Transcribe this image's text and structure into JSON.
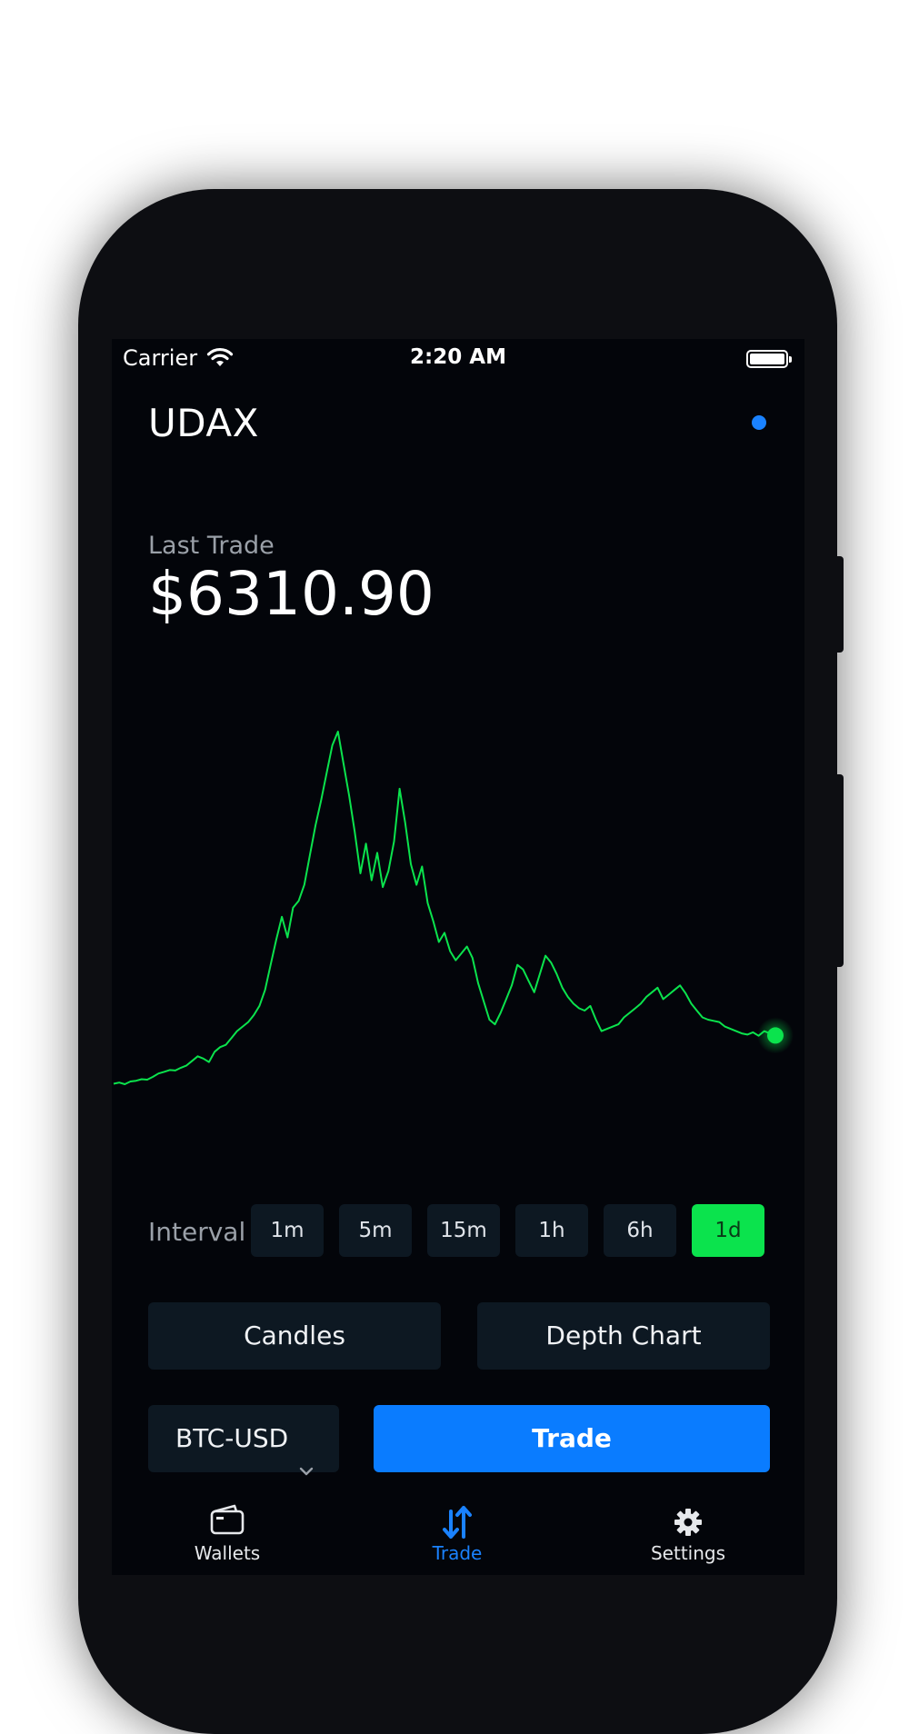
{
  "status_bar": {
    "carrier": "Carrier",
    "time": "2:20 AM"
  },
  "app": {
    "title": "UDAX",
    "accent": "#1a82ff",
    "positive": "#0be34d"
  },
  "last_trade": {
    "label": "Last Trade",
    "price": "$6310.90"
  },
  "interval": {
    "label": "Interval",
    "options": [
      "1m",
      "5m",
      "15m",
      "1h",
      "6h",
      "1d"
    ],
    "selected": "1d"
  },
  "view_buttons": {
    "candles": "Candles",
    "depth_chart": "Depth Chart"
  },
  "pair": {
    "selected": "BTC-USD"
  },
  "trade_button": "Trade",
  "tabs": [
    {
      "label": "Wallets",
      "icon": "wallet-icon",
      "active": false
    },
    {
      "label": "Trade",
      "icon": "transfer-arrows-icon",
      "active": true
    },
    {
      "label": "Settings",
      "icon": "gear-icon",
      "active": false
    }
  ],
  "chart_data": {
    "type": "line",
    "title": "",
    "xlabel": "",
    "ylabel": "",
    "grid": false,
    "values": [
      4200,
      4250,
      4180,
      4300,
      4330,
      4400,
      4380,
      4500,
      4650,
      4720,
      4800,
      4780,
      4900,
      5000,
      5200,
      5400,
      5300,
      5150,
      5600,
      5800,
      5900,
      6200,
      6500,
      6700,
      6900,
      7200,
      7600,
      8300,
      9400,
      10500,
      11500,
      10600,
      11900,
      12200,
      12900,
      14200,
      15500,
      16600,
      17800,
      19000,
      19600,
      18200,
      16800,
      15200,
      13400,
      14700,
      13100,
      14300,
      12800,
      13500,
      14800,
      17100,
      15600,
      13800,
      12900,
      13700,
      12100,
      11300,
      10400,
      10800,
      10000,
      9600,
      9900,
      10200,
      9700,
      8600,
      7800,
      7000,
      6800,
      7300,
      7900,
      8500,
      9400,
      9200,
      8700,
      8200,
      9000,
      9800,
      9500,
      9000,
      8400,
      8000,
      7700,
      7500,
      7400,
      7600,
      7000,
      6500,
      6600,
      6700,
      6800,
      7100,
      7300,
      7500,
      7700,
      8000,
      8200,
      8400,
      7900,
      8100,
      8300,
      8500,
      8150,
      7700,
      7400,
      7100,
      7000,
      6950,
      6900,
      6700,
      6600,
      6500,
      6400,
      6350,
      6450,
      6300,
      6500,
      6400,
      6310.9
    ]
  }
}
